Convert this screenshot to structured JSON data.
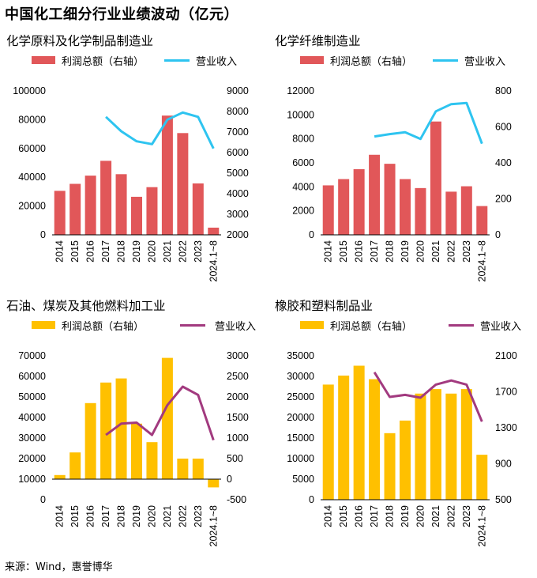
{
  "page": {
    "title": "中国化工细分行业业绩波动（亿元）",
    "source": "来源：Wind，惠誉博华"
  },
  "legend": {
    "bar_label": "利润总额（右轴）",
    "line_label": "营业收入"
  },
  "chart_data": [
    {
      "type": "bar+line",
      "title": "化学原料及化学制品制造业",
      "categories": [
        "2014",
        "2015",
        "2016",
        "2017",
        "2018",
        "2019",
        "2020",
        "2021",
        "2022",
        "2023",
        "2024.1~8"
      ],
      "bar_color": "#E15759",
      "line_color": "#2EC4F0",
      "series": [
        {
          "name": "利润总额（右轴）",
          "type": "bar",
          "axis": "right",
          "values": [
            4140,
            4480,
            4880,
            5600,
            4950,
            3850,
            4320,
            7800,
            6950,
            4500,
            2350
          ]
        },
        {
          "name": "营业收入",
          "type": "line",
          "axis": "left",
          "values": [
            null,
            null,
            null,
            82000,
            72000,
            65000,
            63000,
            80000,
            85000,
            82000,
            60000
          ]
        }
      ],
      "left_axis": {
        "min": 0,
        "max": 100000,
        "ticks": [
          0,
          20000,
          40000,
          60000,
          80000,
          100000
        ]
      },
      "right_axis": {
        "min": 2000,
        "max": 9000,
        "ticks": [
          2000,
          3000,
          4000,
          5000,
          6000,
          7000,
          8000,
          9000
        ]
      }
    },
    {
      "type": "bar+line",
      "title": "化学纤维制造业",
      "categories": [
        "2014",
        "2015",
        "2016",
        "2017",
        "2018",
        "2019",
        "2020",
        "2021",
        "2022",
        "2023",
        "2024.1~8"
      ],
      "bar_color": "#E15759",
      "line_color": "#2EC4F0",
      "series": [
        {
          "name": "利润总额（右轴）",
          "type": "bar",
          "axis": "right",
          "values": [
            275,
            310,
            365,
            445,
            395,
            310,
            260,
            630,
            240,
            270,
            160
          ]
        },
        {
          "name": "营业收入",
          "type": "line",
          "axis": "left",
          "values": [
            null,
            null,
            null,
            8200,
            8400,
            8550,
            8000,
            10300,
            10900,
            11000,
            7600
          ]
        }
      ],
      "left_axis": {
        "min": 0,
        "max": 12000,
        "ticks": [
          0,
          2000,
          4000,
          6000,
          8000,
          10000,
          12000
        ]
      },
      "right_axis": {
        "min": 0,
        "max": 800,
        "ticks": [
          0,
          200,
          400,
          600,
          800
        ]
      }
    },
    {
      "type": "bar+line",
      "title": "石油、煤炭及其他燃料加工业",
      "categories": [
        "2014",
        "2015",
        "2016",
        "2017",
        "2018",
        "2019",
        "2020",
        "2021",
        "2022",
        "2023",
        "2024.1~8"
      ],
      "bar_color": "#FFC000",
      "line_color": "#A23A7F",
      "series": [
        {
          "name": "利润总额（右轴）",
          "type": "bar",
          "axis": "right",
          "values": [
            100,
            650,
            1850,
            2350,
            2450,
            1350,
            900,
            2950,
            500,
            500,
            -200
          ]
        },
        {
          "name": "营业收入",
          "type": "line",
          "axis": "left",
          "values": [
            null,
            null,
            null,
            31500,
            37000,
            37500,
            31500,
            46000,
            55000,
            51000,
            29000
          ]
        }
      ],
      "left_axis": {
        "min": 0,
        "max": 70000,
        "ticks": [
          0,
          10000,
          20000,
          30000,
          40000,
          50000,
          60000,
          70000
        ]
      },
      "right_axis": {
        "min": -500,
        "max": 3000,
        "ticks": [
          -500,
          0,
          500,
          1000,
          1500,
          2000,
          2500,
          3000
        ]
      }
    },
    {
      "type": "bar+line",
      "title": "橡胶和塑料制品业",
      "categories": [
        "2014",
        "2015",
        "2016",
        "2017",
        "2018",
        "2019",
        "2020",
        "2021",
        "2022",
        "2023",
        "2024.1~8"
      ],
      "bar_color": "#FFC000",
      "line_color": "#A23A7F",
      "series": [
        {
          "name": "利润总额（右轴）",
          "type": "bar",
          "axis": "right",
          "values": [
            1780,
            1880,
            1990,
            1840,
            1240,
            1380,
            1680,
            1730,
            1680,
            1730,
            1000
          ]
        },
        {
          "name": "营业收入",
          "type": "line",
          "axis": "left",
          "values": [
            null,
            null,
            null,
            31000,
            25000,
            25500,
            24800,
            28000,
            29000,
            28000,
            19000
          ]
        }
      ],
      "left_axis": {
        "min": 0,
        "max": 35000,
        "ticks": [
          0,
          5000,
          10000,
          15000,
          20000,
          25000,
          30000,
          35000
        ]
      },
      "right_axis": {
        "min": 500,
        "max": 2100,
        "ticks": [
          500,
          900,
          1300,
          1700,
          2100
        ]
      }
    }
  ]
}
